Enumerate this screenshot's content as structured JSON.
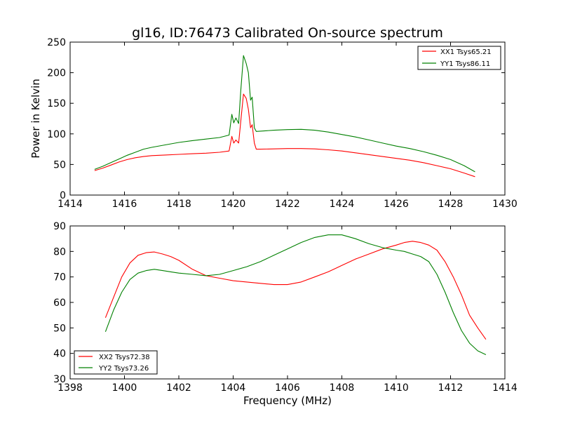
{
  "chart_data": [
    {
      "type": "line",
      "title": "gl16, ID:76473 Calibrated On-source spectrum",
      "xlabel": "",
      "ylabel": "Power in Kelvin",
      "xlim": [
        1414,
        1430
      ],
      "ylim": [
        0,
        250
      ],
      "xticks": [
        "1414",
        "1416",
        "1418",
        "1420",
        "1422",
        "1424",
        "1426",
        "1428",
        "1430"
      ],
      "yticks": [
        "0",
        "50",
        "100",
        "150",
        "200",
        "250"
      ],
      "grid": false,
      "legend_position": "top-right",
      "series": [
        {
          "name": "XX1 Tsys65.21",
          "color": "#ff0000",
          "x": [
            1414.9,
            1415.2,
            1415.5,
            1415.8,
            1416.1,
            1416.4,
            1416.7,
            1417.0,
            1417.5,
            1418.0,
            1418.5,
            1419.0,
            1419.5,
            1419.85,
            1419.95,
            1420.02,
            1420.1,
            1420.2,
            1420.28,
            1420.38,
            1420.48,
            1420.56,
            1420.64,
            1420.7,
            1420.78,
            1420.85,
            1421.0,
            1421.5,
            1422.0,
            1422.5,
            1423.0,
            1423.5,
            1424.0,
            1424.5,
            1425.0,
            1425.5,
            1426.0,
            1426.5,
            1427.0,
            1427.5,
            1428.0,
            1428.5,
            1428.9
          ],
          "y": [
            40,
            44,
            49,
            54,
            58,
            61,
            63,
            64.5,
            65.5,
            66.5,
            67.5,
            68.5,
            70,
            72,
            96,
            85,
            90,
            85,
            120,
            165,
            158,
            140,
            110,
            115,
            85,
            75,
            75,
            75.5,
            76,
            76,
            75.5,
            74,
            72,
            69,
            66,
            63,
            60,
            57,
            53,
            48,
            43,
            36,
            30
          ]
        },
        {
          "name": "YY1 Tsys86.11",
          "color": "#008000",
          "x": [
            1414.9,
            1415.2,
            1415.5,
            1415.8,
            1416.1,
            1416.4,
            1416.7,
            1417.0,
            1417.5,
            1418.0,
            1418.5,
            1419.0,
            1419.5,
            1419.85,
            1419.95,
            1420.02,
            1420.1,
            1420.2,
            1420.28,
            1420.38,
            1420.48,
            1420.56,
            1420.64,
            1420.7,
            1420.78,
            1420.85,
            1421.0,
            1421.5,
            1422.0,
            1422.5,
            1423.0,
            1423.5,
            1424.0,
            1424.5,
            1425.0,
            1425.5,
            1426.0,
            1426.5,
            1427.0,
            1427.5,
            1428.0,
            1428.5,
            1428.9
          ],
          "y": [
            42,
            47,
            53,
            59,
            65,
            70,
            75,
            78,
            82,
            86,
            89,
            91.5,
            94,
            98,
            132,
            118,
            126,
            117,
            170,
            228,
            215,
            200,
            155,
            160,
            110,
            104,
            104.5,
            106,
            107,
            107.5,
            106,
            103,
            99,
            95,
            90,
            85,
            80,
            76,
            71,
            65,
            58,
            48,
            38
          ]
        }
      ]
    },
    {
      "type": "line",
      "title": "",
      "xlabel": "Frequency (MHz)",
      "ylabel": "",
      "xlim": [
        1398,
        1414
      ],
      "ylim": [
        30,
        90
      ],
      "xticks": [
        "1398",
        "1400",
        "1402",
        "1404",
        "1406",
        "1408",
        "1410",
        "1412",
        "1414"
      ],
      "yticks": [
        "30",
        "40",
        "50",
        "60",
        "70",
        "80",
        "90"
      ],
      "grid": false,
      "legend_position": "bottom-left",
      "series": [
        {
          "name": "XX2 Tsys72.38",
          "color": "#ff0000",
          "x": [
            1399.3,
            1399.6,
            1399.9,
            1400.2,
            1400.5,
            1400.8,
            1401.1,
            1401.4,
            1401.7,
            1402.0,
            1402.5,
            1403.0,
            1403.5,
            1404.0,
            1404.5,
            1405.0,
            1405.5,
            1406.0,
            1406.5,
            1407.0,
            1407.5,
            1408.0,
            1408.5,
            1409.0,
            1409.5,
            1410.0,
            1410.3,
            1410.6,
            1410.9,
            1411.2,
            1411.5,
            1411.8,
            1412.1,
            1412.4,
            1412.7,
            1413.0,
            1413.3
          ],
          "y": [
            54,
            62,
            70,
            75.5,
            78.5,
            79.5,
            79.8,
            79,
            78,
            76.5,
            73,
            70.5,
            69.5,
            68.5,
            68,
            67.5,
            67,
            67,
            68,
            70,
            72,
            74.5,
            77,
            79,
            81,
            82.5,
            83.5,
            84,
            83.5,
            82.5,
            80.5,
            76,
            70,
            63,
            55,
            50,
            45.5
          ]
        },
        {
          "name": "YY2 Tsys73.26",
          "color": "#008000",
          "x": [
            1399.3,
            1399.6,
            1399.9,
            1400.2,
            1400.5,
            1400.8,
            1401.1,
            1401.4,
            1401.7,
            1402.0,
            1402.5,
            1403.0,
            1403.5,
            1404.0,
            1404.5,
            1405.0,
            1405.5,
            1406.0,
            1406.5,
            1407.0,
            1407.5,
            1408.0,
            1408.5,
            1409.0,
            1409.5,
            1410.0,
            1410.3,
            1410.6,
            1410.9,
            1411.2,
            1411.5,
            1411.8,
            1412.1,
            1412.4,
            1412.7,
            1413.0,
            1413.3
          ],
          "y": [
            48.5,
            57,
            64,
            69,
            71.5,
            72.5,
            73,
            72.5,
            72,
            71.5,
            71,
            70.5,
            71,
            72.5,
            74,
            76,
            78.5,
            81,
            83.5,
            85.5,
            86.5,
            86.5,
            85,
            83,
            81.5,
            80.5,
            80,
            79,
            78,
            76,
            71,
            64,
            56,
            49,
            44,
            41,
            39.5
          ]
        }
      ]
    }
  ]
}
